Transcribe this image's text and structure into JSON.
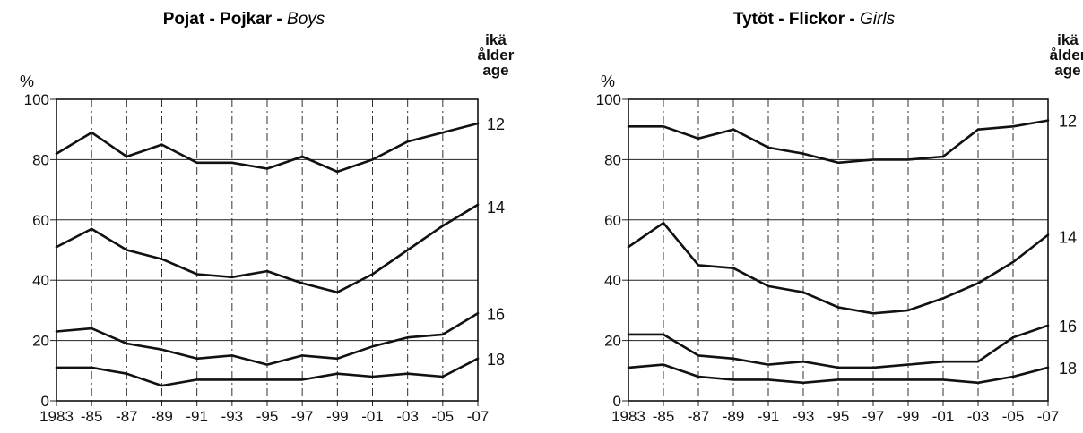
{
  "chart_data": [
    {
      "type": "line",
      "title": {
        "part1": "Pojat - Pojkar - ",
        "part2": "Boys"
      },
      "ylabel": "%",
      "age_header": [
        "ikä",
        "ålder",
        "age"
      ],
      "x_tick_labels": [
        "1983",
        "-85",
        "-87",
        "-89",
        "-91",
        "-93",
        "-95",
        "-97",
        "-99",
        "-01",
        "-03",
        "-05",
        "-07"
      ],
      "y_tick_labels": [
        "0",
        "20",
        "40",
        "60",
        "80",
        "100"
      ],
      "ylim": [
        0,
        100
      ],
      "grid": true,
      "series": [
        {
          "name": "12",
          "values": [
            82,
            89,
            81,
            85,
            79,
            79,
            77,
            81,
            76,
            80,
            86,
            89,
            92
          ]
        },
        {
          "name": "14",
          "values": [
            51,
            57,
            50,
            47,
            42,
            41,
            43,
            39,
            36,
            42,
            50,
            58,
            65
          ]
        },
        {
          "name": "16",
          "values": [
            23,
            24,
            19,
            17,
            14,
            15,
            12,
            15,
            14,
            18,
            21,
            22,
            29
          ]
        },
        {
          "name": "18",
          "values": [
            11,
            11,
            9,
            5,
            7,
            7,
            7,
            7,
            9,
            8,
            9,
            8,
            14
          ]
        }
      ]
    },
    {
      "type": "line",
      "title": {
        "part1": "Tytöt - Flickor - ",
        "part2": "Girls"
      },
      "ylabel": "%",
      "age_header": [
        "ikä",
        "ålder",
        "age"
      ],
      "x_tick_labels": [
        "1983",
        "-85",
        "-87",
        "-89",
        "-91",
        "-93",
        "-95",
        "-97",
        "-99",
        "-01",
        "-03",
        "-05",
        "-07"
      ],
      "y_tick_labels": [
        "0",
        "20",
        "40",
        "60",
        "80",
        "100"
      ],
      "ylim": [
        0,
        100
      ],
      "grid": true,
      "series": [
        {
          "name": "12",
          "values": [
            91,
            91,
            87,
            90,
            84,
            82,
            79,
            80,
            80,
            81,
            90,
            91,
            93
          ]
        },
        {
          "name": "14",
          "values": [
            51,
            59,
            45,
            44,
            38,
            36,
            31,
            29,
            30,
            34,
            39,
            46,
            55
          ]
        },
        {
          "name": "16",
          "values": [
            22,
            22,
            15,
            14,
            12,
            13,
            11,
            11,
            12,
            13,
            13,
            21,
            25
          ]
        },
        {
          "name": "18",
          "values": [
            11,
            12,
            8,
            7,
            7,
            6,
            7,
            7,
            7,
            7,
            6,
            8,
            11
          ]
        }
      ]
    }
  ]
}
